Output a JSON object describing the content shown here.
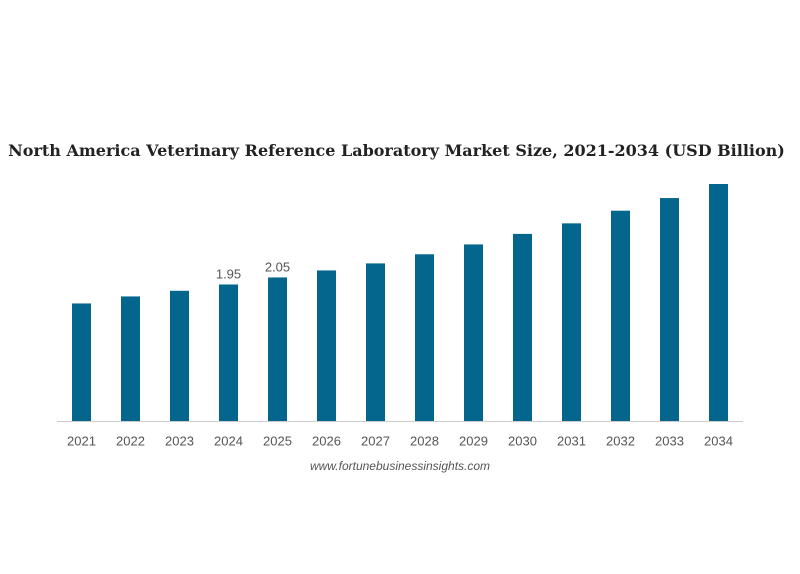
{
  "chart_data": {
    "type": "bar",
    "title": "North America Veterinary Reference Laboratory Market Size, 2021-2034 (USD Billion)",
    "xlabel": "",
    "ylabel": "",
    "categories": [
      "2021",
      "2022",
      "2023",
      "2024",
      "2025",
      "2026",
      "2027",
      "2028",
      "2029",
      "2030",
      "2031",
      "2032",
      "2033",
      "2034"
    ],
    "values": [
      1.68,
      1.78,
      1.86,
      1.95,
      2.05,
      2.15,
      2.25,
      2.38,
      2.52,
      2.67,
      2.82,
      3.0,
      3.18,
      3.38
    ],
    "data_labels": {
      "2024": "1.95",
      "2025": "2.05"
    },
    "ylim": [
      0,
      3.4
    ],
    "bar_color": "#05668d",
    "grid": false,
    "legend": "none"
  },
  "source": "www.fortunebusinessinsights.com"
}
